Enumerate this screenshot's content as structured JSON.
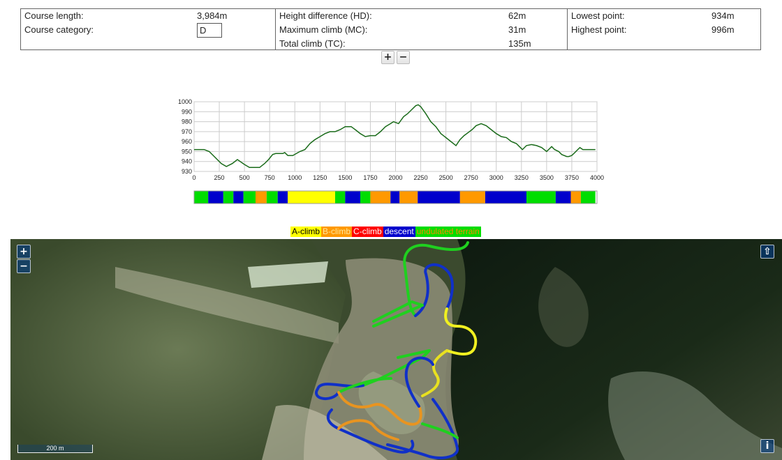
{
  "stats": {
    "course_length_label": "Course length:",
    "course_length_value": "3,984m",
    "course_category_label": "Course category:",
    "course_category_value": "D",
    "height_difference_label": "Height difference (HD):",
    "height_difference_value": "62m",
    "maximum_climb_label": "Maximum climb (MC):",
    "maximum_climb_value": "31m",
    "total_climb_label": "Total climb (TC):",
    "total_climb_value": "135m",
    "lowest_point_label": "Lowest point:",
    "lowest_point_value": "934m",
    "highest_point_label": "Highest point:",
    "highest_point_value": "996m"
  },
  "profile_controls": {
    "plus": "+",
    "minus": "−"
  },
  "chart_data": {
    "type": "line",
    "title": "",
    "xlabel": "",
    "ylabel": "",
    "xlim": [
      0,
      4000
    ],
    "ylim": [
      930,
      1000
    ],
    "x_ticks": [
      0,
      250,
      500,
      750,
      1000,
      1250,
      1500,
      1750,
      2000,
      2250,
      2500,
      2750,
      3000,
      3250,
      3500,
      3750,
      4000
    ],
    "y_ticks": [
      930,
      940,
      950,
      960,
      970,
      980,
      990,
      1000
    ],
    "grid": true,
    "line_color": "#1a6b1a",
    "series": [
      {
        "x": [
          0,
          100,
          150,
          200,
          270,
          320,
          380,
          430,
          500,
          550,
          620,
          650,
          700,
          740,
          780,
          810,
          850,
          880,
          900,
          930,
          980,
          1050,
          1100,
          1150,
          1200,
          1250,
          1300,
          1350,
          1400,
          1450,
          1500,
          1560,
          1600,
          1650,
          1700,
          1750,
          1800,
          1850,
          1900,
          1950,
          1980,
          2030,
          2080,
          2120,
          2160,
          2200,
          2225,
          2250,
          2300,
          2350,
          2400,
          2450,
          2500,
          2550,
          2600,
          2640,
          2680,
          2720,
          2760,
          2800,
          2850,
          2900,
          2950,
          3000,
          3050,
          3100,
          3150,
          3200,
          3230,
          3260,
          3300,
          3350,
          3400,
          3450,
          3500,
          3550,
          3580,
          3620,
          3650,
          3700,
          3720,
          3750,
          3780,
          3800,
          3830,
          3860,
          3900,
          3950,
          3984
        ],
        "y": [
          952,
          952,
          950,
          945,
          938,
          935,
          938,
          942,
          937,
          934,
          934,
          934,
          938,
          942,
          947,
          948,
          948,
          948,
          949,
          946,
          946,
          950,
          952,
          958,
          962,
          965,
          968,
          970,
          970,
          972,
          975,
          975,
          972,
          968,
          965,
          966,
          966,
          970,
          975,
          978,
          980,
          978,
          985,
          988,
          992,
          996,
          997,
          995,
          988,
          980,
          975,
          968,
          964,
          960,
          956,
          962,
          966,
          969,
          972,
          976,
          978,
          976,
          972,
          968,
          965,
          964,
          960,
          958,
          955,
          952,
          956,
          957,
          956,
          954,
          950,
          955,
          952,
          950,
          947,
          945,
          945,
          946,
          949,
          951,
          954,
          952,
          952,
          952,
          952
        ]
      }
    ],
    "terrain_bar": [
      {
        "type": "undulated",
        "x0": 0,
        "x1": 140
      },
      {
        "type": "descent",
        "x0": 140,
        "x1": 290
      },
      {
        "type": "undulated",
        "x0": 290,
        "x1": 390
      },
      {
        "type": "descent",
        "x0": 390,
        "x1": 490
      },
      {
        "type": "undulated",
        "x0": 490,
        "x1": 610
      },
      {
        "type": "b_climb",
        "x0": 610,
        "x1": 720
      },
      {
        "type": "undulated",
        "x0": 720,
        "x1": 830
      },
      {
        "type": "descent",
        "x0": 830,
        "x1": 930
      },
      {
        "type": "a_climb",
        "x0": 930,
        "x1": 1400
      },
      {
        "type": "undulated",
        "x0": 1400,
        "x1": 1500
      },
      {
        "type": "descent",
        "x0": 1500,
        "x1": 1650
      },
      {
        "type": "undulated",
        "x0": 1650,
        "x1": 1750
      },
      {
        "type": "b_climb",
        "x0": 1750,
        "x1": 1950
      },
      {
        "type": "descent",
        "x0": 1950,
        "x1": 2040
      },
      {
        "type": "b_climb",
        "x0": 2040,
        "x1": 2220
      },
      {
        "type": "descent",
        "x0": 2220,
        "x1": 2640
      },
      {
        "type": "b_climb",
        "x0": 2640,
        "x1": 2890
      },
      {
        "type": "descent",
        "x0": 2890,
        "x1": 3300
      },
      {
        "type": "undulated",
        "x0": 3300,
        "x1": 3590
      },
      {
        "type": "descent",
        "x0": 3590,
        "x1": 3740
      },
      {
        "type": "b_climb",
        "x0": 3740,
        "x1": 3840
      },
      {
        "type": "undulated",
        "x0": 3840,
        "x1": 3984
      }
    ],
    "terrain_colors": {
      "a_climb": "#ffff00",
      "b_climb": "#ff9900",
      "c_climb": "#ff0000",
      "descent": "#0000cc",
      "undulated": "#00dd00"
    }
  },
  "legend": {
    "a_climb": "A-climb",
    "b_climb": "B-climb",
    "c_climb": "C-climb",
    "descent": "descent",
    "undulated": "undulated terrain"
  },
  "map": {
    "zoom_in": "+",
    "zoom_out": "−",
    "north_button": "⇧",
    "info_button": "i",
    "scale_label": "200 m"
  }
}
